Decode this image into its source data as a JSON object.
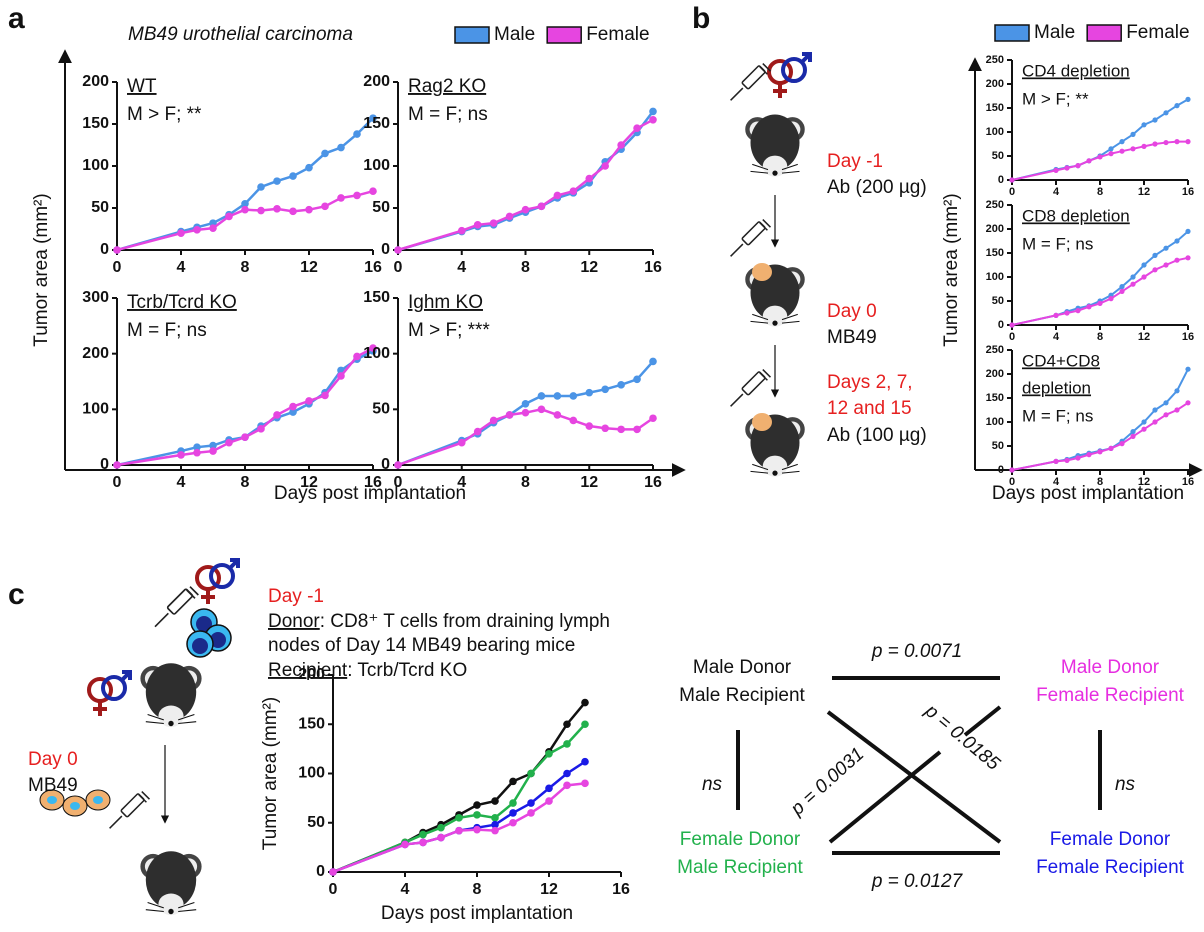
{
  "panel_labels": [
    "a",
    "b",
    "c"
  ],
  "panel_a": {
    "title": "MB49 urothelial carcinoma",
    "y_label": "Tumor area (mm²)",
    "x_label": "Days post implantation",
    "legend": [
      {
        "name": "Male",
        "color": "#4b94e6"
      },
      {
        "name": "Female",
        "color": "#e645e0"
      }
    ]
  },
  "panel_b": {
    "y_label": "Tumor area (mm²)",
    "x_label": "Days post implantation",
    "legend": [
      {
        "name": "Male",
        "color": "#4b94e6"
      },
      {
        "name": "Female",
        "color": "#e645e0"
      }
    ],
    "steps": [
      {
        "day": "Day -1",
        "text": [
          "Ab (200 µg)"
        ]
      },
      {
        "day": "Day 0",
        "text": [
          "MB49"
        ]
      },
      {
        "day": "Days 2, 7,",
        "day2": "12 and 15",
        "text": [
          "Ab (100 µg)"
        ]
      }
    ]
  },
  "panel_c": {
    "day": "Day -1",
    "donor": "Donor",
    "donor_text": ": CD8⁺ T cells from draining lymph",
    "donor_text2": "nodes of Day 14 MB49 bearing mice",
    "recipient": "Recipient",
    "recipient_text": ": Tcrb/Tcrd KO",
    "day0": "Day 0",
    "day0_text": "MB49"
  },
  "comparison": {
    "groups": [
      {
        "lines": [
          "Male Donor",
          "Male Recipient"
        ],
        "color": "#111111"
      },
      {
        "lines": [
          "Male Donor",
          "Female Recipient"
        ],
        "color": "#e62ee0"
      },
      {
        "lines": [
          "Female Donor",
          "Male Recipient"
        ],
        "color": "#22b14c"
      },
      {
        "lines": [
          "Female Donor",
          "Female Recipient"
        ],
        "color": "#1a1ae6"
      }
    ],
    "tests": [
      "p = 0.0071",
      "p = 0.0127",
      "ns",
      "ns",
      "p = 0.0031",
      "p = 0.0185"
    ]
  },
  "chart_data": [
    {
      "type": "line",
      "title": "WT",
      "annotation": "M > F; **",
      "x": [
        0,
        4,
        5,
        6,
        7,
        8,
        9,
        10,
        11,
        12,
        13,
        14,
        15,
        16
      ],
      "series": [
        {
          "color": "#4b94e6",
          "values": [
            0,
            22,
            27,
            32,
            42,
            55,
            75,
            82,
            88,
            98,
            115,
            122,
            138,
            157
          ]
        },
        {
          "color": "#e645e0",
          "values": [
            0,
            20,
            24,
            26,
            40,
            48,
            47,
            49,
            46,
            48,
            52,
            62,
            65,
            70
          ]
        }
      ],
      "xlim": [
        0,
        16
      ],
      "ylim": [
        0,
        200
      ],
      "xticks": [
        0,
        4,
        8,
        12,
        16
      ],
      "yticks": [
        0,
        50,
        100,
        150,
        200
      ]
    },
    {
      "type": "line",
      "title": "Rag2 KO",
      "annotation": "M = F; ns",
      "x": [
        0,
        4,
        5,
        6,
        7,
        8,
        9,
        10,
        11,
        12,
        13,
        14,
        15,
        16
      ],
      "series": [
        {
          "color": "#4b94e6",
          "values": [
            0,
            22,
            28,
            30,
            38,
            45,
            52,
            62,
            68,
            80,
            105,
            120,
            140,
            165
          ]
        },
        {
          "color": "#e645e0",
          "values": [
            0,
            23,
            30,
            32,
            40,
            48,
            52,
            65,
            70,
            85,
            100,
            125,
            145,
            155
          ]
        }
      ],
      "xlim": [
        0,
        16
      ],
      "ylim": [
        0,
        200
      ],
      "xticks": [
        0,
        4,
        8,
        12,
        16
      ],
      "yticks": [
        0,
        50,
        100,
        150,
        200
      ]
    },
    {
      "type": "line",
      "title": "Tcrb/Tcrd KO",
      "annotation": "M = F; ns",
      "x": [
        0,
        4,
        5,
        6,
        7,
        8,
        9,
        10,
        11,
        12,
        13,
        14,
        15,
        16
      ],
      "series": [
        {
          "color": "#4b94e6",
          "values": [
            0,
            25,
            32,
            35,
            45,
            50,
            70,
            85,
            95,
            110,
            130,
            170,
            190,
            205
          ]
        },
        {
          "color": "#e645e0",
          "values": [
            0,
            18,
            22,
            25,
            40,
            50,
            65,
            90,
            105,
            115,
            125,
            160,
            195,
            210
          ]
        }
      ],
      "xlim": [
        0,
        16
      ],
      "ylim": [
        0,
        300
      ],
      "xticks": [
        0,
        4,
        8,
        12,
        16
      ],
      "yticks": [
        0,
        100,
        200,
        300
      ]
    },
    {
      "type": "line",
      "title": "Ighm KO",
      "annotation": "M > F; ***",
      "x": [
        0,
        4,
        5,
        6,
        7,
        8,
        9,
        10,
        11,
        12,
        13,
        14,
        15,
        16
      ],
      "series": [
        {
          "color": "#4b94e6",
          "values": [
            0,
            22,
            28,
            38,
            45,
            55,
            62,
            62,
            62,
            65,
            68,
            72,
            77,
            93
          ]
        },
        {
          "color": "#e645e0",
          "values": [
            0,
            20,
            30,
            40,
            45,
            47,
            50,
            45,
            40,
            35,
            33,
            32,
            32,
            42
          ]
        }
      ],
      "xlim": [
        0,
        16
      ],
      "ylim": [
        0,
        150
      ],
      "xticks": [
        0,
        4,
        8,
        12,
        16
      ],
      "yticks": [
        0,
        50,
        100,
        150
      ]
    },
    {
      "type": "line",
      "title": "CD4 depletion",
      "annotation": "M > F; **",
      "x": [
        0,
        4,
        5,
        6,
        7,
        8,
        9,
        10,
        11,
        12,
        13,
        14,
        15,
        16
      ],
      "series": [
        {
          "color": "#4b94e6",
          "values": [
            0,
            22,
            26,
            30,
            40,
            50,
            65,
            80,
            95,
            115,
            125,
            140,
            155,
            168
          ]
        },
        {
          "color": "#e645e0",
          "values": [
            0,
            20,
            25,
            30,
            40,
            48,
            55,
            60,
            65,
            70,
            75,
            78,
            80,
            80
          ]
        }
      ],
      "xlim": [
        0,
        16
      ],
      "ylim": [
        0,
        250
      ],
      "xticks": [
        0,
        4,
        8,
        12,
        16
      ],
      "yticks": [
        0,
        50,
        100,
        150,
        200,
        250
      ]
    },
    {
      "type": "line",
      "title": "CD8 depletion",
      "annotation": "M = F; ns",
      "x": [
        0,
        4,
        5,
        6,
        7,
        8,
        9,
        10,
        11,
        12,
        13,
        14,
        15,
        16
      ],
      "series": [
        {
          "color": "#4b94e6",
          "values": [
            0,
            20,
            28,
            35,
            40,
            50,
            62,
            80,
            100,
            125,
            145,
            160,
            175,
            195
          ]
        },
        {
          "color": "#e645e0",
          "values": [
            0,
            20,
            25,
            30,
            38,
            45,
            55,
            70,
            85,
            100,
            115,
            125,
            135,
            140
          ]
        }
      ],
      "xlim": [
        0,
        16
      ],
      "ylim": [
        0,
        250
      ],
      "xticks": [
        0,
        4,
        8,
        12,
        16
      ],
      "yticks": [
        0,
        50,
        100,
        150,
        200,
        250
      ]
    },
    {
      "type": "line",
      "title": [
        "CD4+CD8",
        "depletion"
      ],
      "annotation": "M = F; ns",
      "x": [
        0,
        4,
        5,
        6,
        7,
        8,
        9,
        10,
        11,
        12,
        13,
        14,
        15,
        16
      ],
      "series": [
        {
          "color": "#4b94e6",
          "values": [
            0,
            18,
            22,
            30,
            35,
            40,
            45,
            60,
            80,
            100,
            125,
            140,
            165,
            210
          ]
        },
        {
          "color": "#e645e0",
          "values": [
            0,
            18,
            20,
            25,
            32,
            38,
            45,
            55,
            70,
            85,
            100,
            115,
            125,
            140
          ]
        }
      ],
      "xlim": [
        0,
        16
      ],
      "ylim": [
        0,
        250
      ],
      "xticks": [
        0,
        4,
        8,
        12,
        16
      ],
      "yticks": [
        0,
        50,
        100,
        150,
        200,
        250
      ]
    },
    {
      "type": "line",
      "y_label": "Tumor area (mm²)",
      "x_label": "Days post implantation",
      "x": [
        0,
        4,
        5,
        6,
        7,
        8,
        9,
        10,
        11,
        12,
        13,
        14
      ],
      "series": [
        {
          "color": "#111111",
          "values": [
            0,
            30,
            40,
            48,
            58,
            68,
            72,
            92,
            100,
            122,
            150,
            172
          ]
        },
        {
          "color": "#22b14c",
          "values": [
            0,
            30,
            38,
            45,
            55,
            58,
            55,
            70,
            100,
            120,
            130,
            150
          ]
        },
        {
          "color": "#1a1ae6",
          "values": [
            0,
            28,
            30,
            35,
            42,
            45,
            48,
            60,
            70,
            85,
            100,
            112
          ]
        },
        {
          "color": "#e645e0",
          "values": [
            0,
            28,
            30,
            35,
            42,
            43,
            42,
            50,
            60,
            72,
            88,
            90
          ]
        }
      ],
      "xlim": [
        0,
        16
      ],
      "ylim": [
        0,
        200
      ],
      "xticks": [
        0,
        4,
        8,
        12,
        16
      ],
      "yticks": [
        0,
        50,
        100,
        150,
        200
      ]
    }
  ]
}
